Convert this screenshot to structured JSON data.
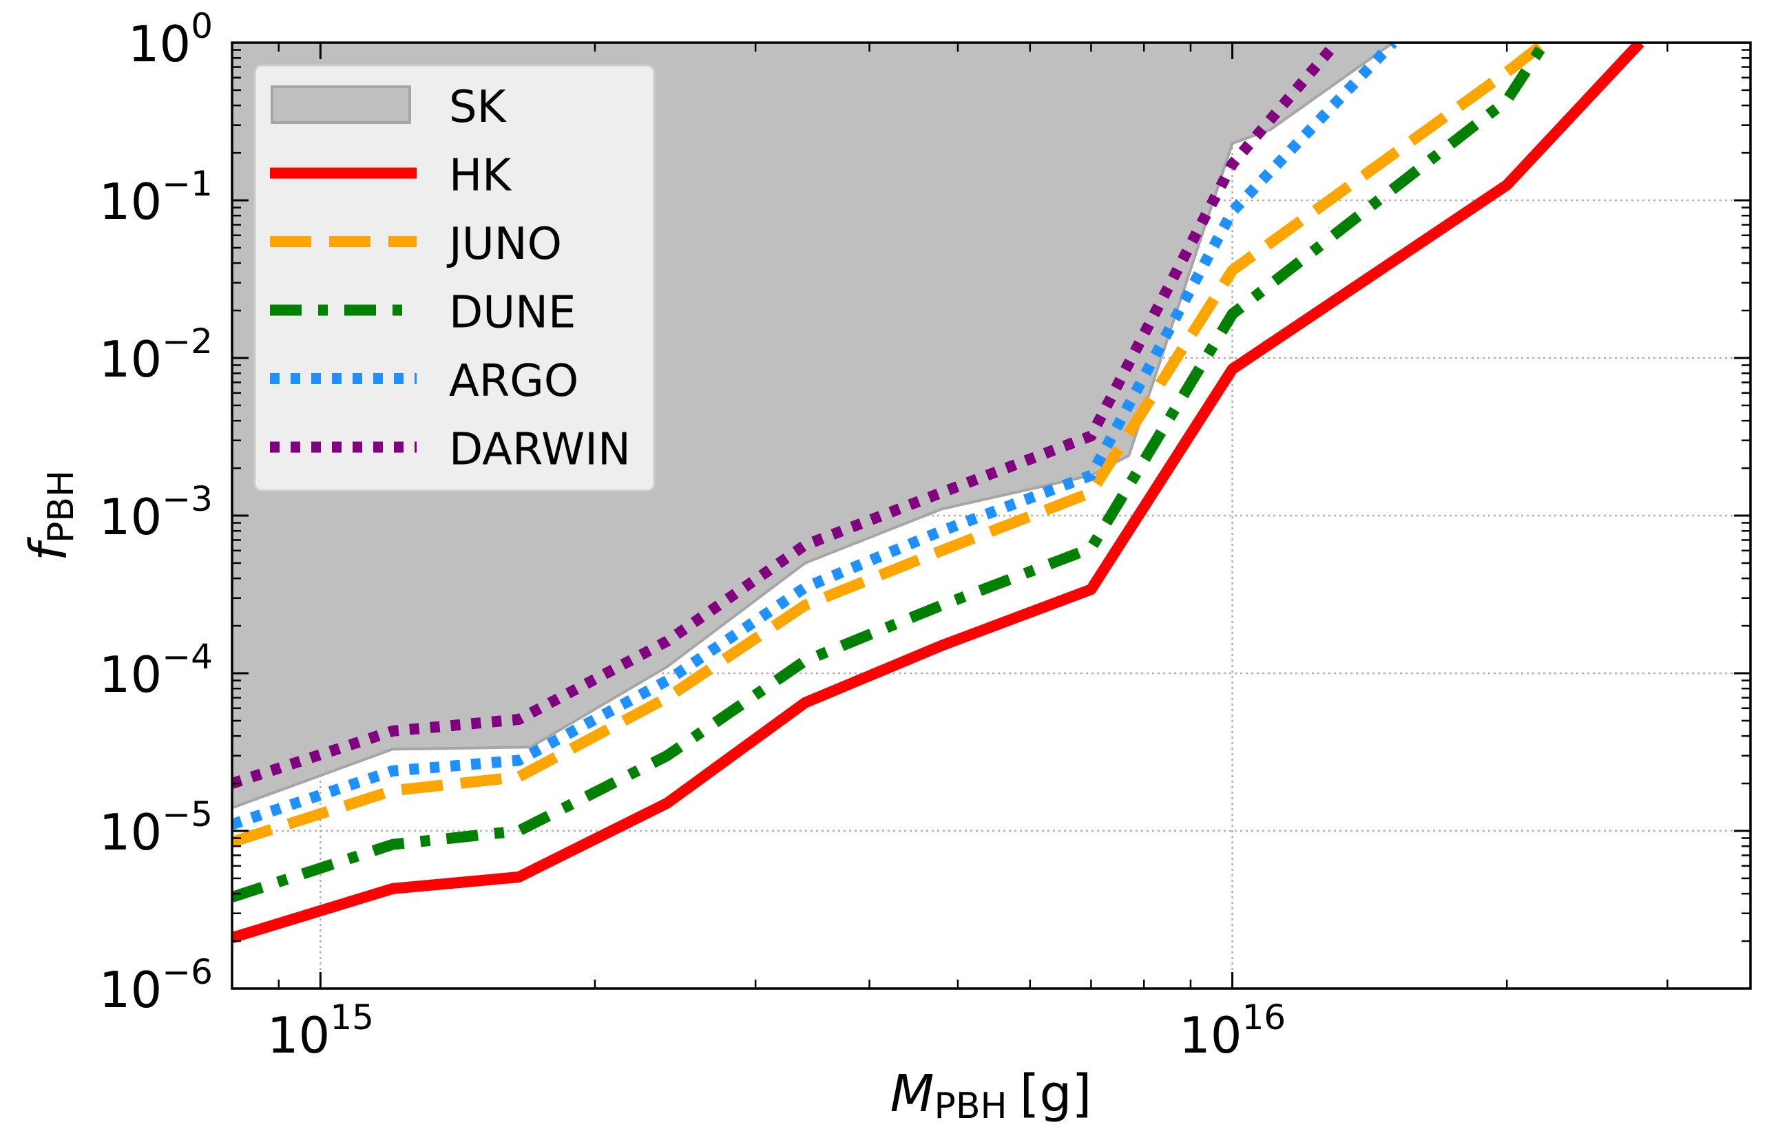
{
  "chart_data": {
    "type": "line",
    "title": "",
    "xlabel": {
      "main": "M",
      "sub": "PBH",
      "unit": "[g]"
    },
    "ylabel": {
      "main": "f",
      "sub": "PBH"
    },
    "xscale": "log",
    "yscale": "log",
    "xlim": [
      800000000000000.0,
      3.7e+16
    ],
    "ylim": [
      1e-06,
      1
    ],
    "grid": true,
    "legend_position": "top-left",
    "x_ticks": [
      {
        "value": 1000000000000000.0,
        "base": "10",
        "exp": "15"
      },
      {
        "value": 1e+16,
        "base": "10",
        "exp": "16"
      }
    ],
    "y_ticks": [
      {
        "value": 1,
        "base": "10",
        "exp": "0"
      },
      {
        "value": 0.1,
        "base": "10",
        "exp": "−1"
      },
      {
        "value": 0.01,
        "base": "10",
        "exp": "−2"
      },
      {
        "value": 0.001,
        "base": "10",
        "exp": "−3"
      },
      {
        "value": 0.0001,
        "base": "10",
        "exp": "−4"
      },
      {
        "value": 1e-05,
        "base": "10",
        "exp": "−5"
      },
      {
        "value": 1e-06,
        "base": "10",
        "exp": "−6"
      }
    ],
    "series": [
      {
        "name": "SK",
        "kind": "fill",
        "color": "#bfbfbf",
        "edge": "#a6a6a6",
        "x": [
          800000000000000.0,
          1200000000000000.0,
          1700000000000000.0,
          2400000000000000.0,
          3400000000000000.0,
          4800000000000000.0,
          7000000000000000.0,
          7700000000000000.0,
          1e+16,
          1.1e+16,
          1.5e+16,
          3.7e+16
        ],
        "y": [
          1.4e-05,
          3.3e-05,
          3.4e-05,
          0.00011,
          0.0005,
          0.0011,
          0.0018,
          0.0024,
          0.23,
          0.28,
          1.0,
          1.0
        ]
      },
      {
        "name": "HK",
        "kind": "line",
        "style": "solid",
        "color": "#ff0000",
        "x": [
          800000000000000.0,
          1200000000000000.0,
          1650000000000000.0,
          2400000000000000.0,
          3400000000000000.0,
          4800000000000000.0,
          7000000000000000.0,
          1e+16,
          2e+16,
          2.8e+16
        ],
        "y": [
          2.1e-06,
          4.3e-06,
          5.1e-06,
          1.5e-05,
          6.5e-05,
          0.00015,
          0.00034,
          0.0085,
          0.125,
          1.0
        ]
      },
      {
        "name": "JUNO",
        "kind": "line",
        "style": "dashed",
        "color": "#ffa500",
        "x": [
          800000000000000.0,
          1200000000000000.0,
          1650000000000000.0,
          2400000000000000.0,
          3400000000000000.0,
          4800000000000000.0,
          7000000000000000.0,
          1e+16,
          2e+16,
          2.2e+16
        ],
        "y": [
          8.5e-06,
          1.8e-05,
          2.2e-05,
          7e-05,
          0.00027,
          0.0006,
          0.0014,
          0.036,
          0.65,
          1.0
        ]
      },
      {
        "name": "DUNE",
        "kind": "line",
        "style": "dashdot",
        "color": "#008000",
        "x": [
          800000000000000.0,
          1200000000000000.0,
          1650000000000000.0,
          2400000000000000.0,
          3400000000000000.0,
          4800000000000000.0,
          7000000000000000.0,
          1e+16,
          2e+16,
          2.2e+16
        ],
        "y": [
          3.8e-06,
          8.2e-06,
          1e-05,
          3e-05,
          0.00012,
          0.00027,
          0.00062,
          0.019,
          0.43,
          1.0
        ]
      },
      {
        "name": "ARGO",
        "kind": "line",
        "style": "dotted",
        "color": "#1e90ff",
        "x": [
          800000000000000.0,
          1200000000000000.0,
          1650000000000000.0,
          2400000000000000.0,
          3400000000000000.0,
          4800000000000000.0,
          7000000000000000.0,
          1e+16,
          1.5e+16
        ],
        "y": [
          1.1e-05,
          2.4e-05,
          2.8e-05,
          9e-05,
          0.00035,
          0.0008,
          0.0018,
          0.085,
          1.0
        ]
      },
      {
        "name": "DARWIN",
        "kind": "line",
        "style": "dotted",
        "color": "#800080",
        "x": [
          800000000000000.0,
          1200000000000000.0,
          1650000000000000.0,
          2400000000000000.0,
          3400000000000000.0,
          4800000000000000.0,
          7000000000000000.0,
          1e+16,
          1.3e+16
        ],
        "y": [
          2e-05,
          4.3e-05,
          5.1e-05,
          0.00016,
          0.00065,
          0.0014,
          0.0032,
          0.17,
          1.0
        ]
      }
    ]
  }
}
